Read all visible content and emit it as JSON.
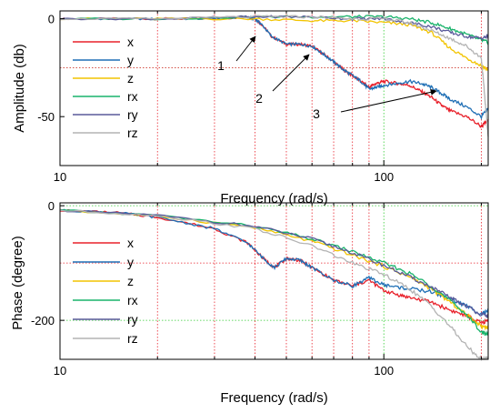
{
  "chart_data": [
    {
      "type": "line",
      "ylabel": "Amplitude (db)",
      "xlabel": "Frequency (rad/s)",
      "x_scale": "log",
      "xlim": [
        10,
        210
      ],
      "ylim": [
        -75,
        4
      ],
      "x_tick_labels": [
        "10",
        "100"
      ],
      "y_tick_labels": [
        "0",
        "-50"
      ],
      "legend_position": "left",
      "annotations": [
        "1",
        "2",
        "3"
      ],
      "series": [
        {
          "name": "x",
          "color": "#e8202a",
          "x": [
            10,
            15,
            20,
            30,
            38,
            40,
            42,
            45,
            50,
            55,
            60,
            65,
            70,
            75,
            80,
            85,
            90,
            95,
            100,
            110,
            120,
            130,
            140,
            150,
            160,
            180,
            200,
            210
          ],
          "values": [
            0,
            0,
            0,
            0,
            1,
            0,
            -3,
            -9,
            -13,
            -13,
            -14,
            -18,
            -22,
            -26,
            -29,
            -32,
            -35,
            -33,
            -32,
            -33,
            -34,
            -37,
            -40,
            -44,
            -47,
            -50,
            -55,
            -52
          ]
        },
        {
          "name": "y",
          "color": "#1f6fb5",
          "x": [
            10,
            15,
            20,
            30,
            38,
            40,
            42,
            45,
            50,
            55,
            60,
            65,
            70,
            75,
            80,
            85,
            90,
            95,
            100,
            110,
            120,
            130,
            140,
            150,
            160,
            180,
            200,
            210
          ],
          "values": [
            0,
            0,
            0,
            0,
            1,
            0,
            -3,
            -9,
            -13,
            -13,
            -14,
            -18,
            -22,
            -26,
            -29,
            -32,
            -36,
            -35,
            -34,
            -33,
            -32,
            -33,
            -35,
            -38,
            -41,
            -45,
            -50,
            -46
          ]
        },
        {
          "name": "z",
          "color": "#f2c400",
          "x": [
            10,
            20,
            40,
            60,
            80,
            100,
            120,
            140,
            160,
            180,
            200,
            210
          ],
          "values": [
            0,
            0,
            0,
            -1,
            -1,
            -2,
            -3,
            -7,
            -15,
            -20,
            -24,
            -26
          ]
        },
        {
          "name": "rx",
          "color": "#19b36b",
          "x": [
            10,
            20,
            40,
            60,
            80,
            100,
            120,
            140,
            160,
            180,
            200,
            210
          ],
          "values": [
            0,
            0,
            1,
            1,
            1,
            1,
            0,
            -2,
            -5,
            -8,
            -11,
            -12
          ]
        },
        {
          "name": "ry",
          "color": "#5a5a9a",
          "x": [
            10,
            20,
            40,
            60,
            80,
            100,
            120,
            140,
            160,
            180,
            200,
            210
          ],
          "values": [
            0,
            0,
            1,
            1,
            0,
            0,
            -2,
            -4,
            -7,
            -9,
            -10,
            -9
          ]
        },
        {
          "name": "rz",
          "color": "#b3b3b3",
          "x": [
            10,
            20,
            40,
            60,
            80,
            100,
            120,
            140,
            160,
            180,
            200,
            205,
            210
          ],
          "values": [
            0,
            0,
            1,
            1,
            0,
            0,
            -2,
            -6,
            -10,
            -14,
            -20,
            -40,
            -60
          ]
        }
      ]
    },
    {
      "type": "line",
      "ylabel": "Phase (degree)",
      "xlabel": "Frequency (rad/s)",
      "x_scale": "log",
      "xlim": [
        10,
        210
      ],
      "ylim": [
        -268,
        5
      ],
      "x_tick_labels": [
        "10",
        "100"
      ],
      "y_tick_labels": [
        "0",
        "-200"
      ],
      "legend_position": "left",
      "series": [
        {
          "name": "x",
          "color": "#e8202a",
          "x": [
            10,
            15,
            20,
            30,
            38,
            43,
            46,
            50,
            55,
            60,
            70,
            80,
            90,
            100,
            110,
            120,
            140,
            160,
            180,
            200,
            210
          ],
          "values": [
            -8,
            -12,
            -20,
            -40,
            -65,
            -95,
            -108,
            -92,
            -95,
            -108,
            -130,
            -140,
            -130,
            -148,
            -155,
            -160,
            -168,
            -182,
            -192,
            -205,
            -200
          ]
        },
        {
          "name": "y",
          "color": "#1f6fb5",
          "x": [
            10,
            15,
            20,
            30,
            38,
            43,
            46,
            50,
            55,
            60,
            70,
            80,
            90,
            100,
            110,
            120,
            140,
            160,
            180,
            200,
            210
          ],
          "values": [
            -8,
            -12,
            -20,
            -40,
            -65,
            -95,
            -108,
            -92,
            -95,
            -108,
            -130,
            -140,
            -126,
            -138,
            -142,
            -145,
            -150,
            -162,
            -175,
            -188,
            -185
          ]
        },
        {
          "name": "z",
          "color": "#f2c400",
          "x": [
            10,
            20,
            40,
            60,
            80,
            100,
            120,
            140,
            160,
            180,
            200,
            210
          ],
          "values": [
            -8,
            -18,
            -38,
            -62,
            -86,
            -106,
            -124,
            -145,
            -168,
            -190,
            -210,
            -212
          ]
        },
        {
          "name": "rx",
          "color": "#19b36b",
          "x": [
            10,
            20,
            40,
            60,
            80,
            100,
            120,
            140,
            160,
            180,
            200,
            210
          ],
          "values": [
            -8,
            -17,
            -36,
            -58,
            -80,
            -100,
            -118,
            -140,
            -165,
            -190,
            -220,
            -225
          ]
        },
        {
          "name": "ry",
          "color": "#5a5a9a",
          "x": [
            10,
            20,
            40,
            60,
            80,
            100,
            120,
            140,
            160,
            180,
            200,
            210
          ],
          "values": [
            -8,
            -17,
            -36,
            -58,
            -82,
            -104,
            -124,
            -142,
            -160,
            -175,
            -190,
            -192
          ]
        },
        {
          "name": "rz",
          "color": "#b3b3b3",
          "x": [
            10,
            20,
            40,
            60,
            80,
            100,
            120,
            140,
            160,
            180,
            200,
            210
          ],
          "values": [
            -8,
            -17,
            -40,
            -70,
            -100,
            -120,
            -145,
            -175,
            -210,
            -245,
            -268,
            -265
          ]
        }
      ]
    }
  ]
}
